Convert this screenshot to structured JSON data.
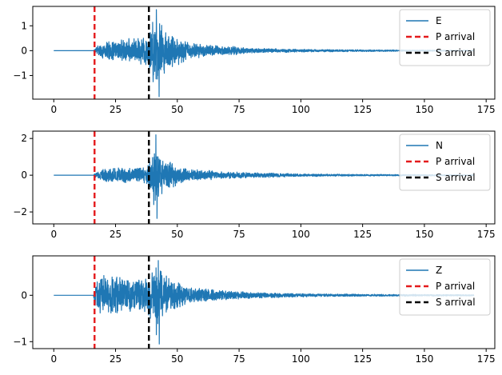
{
  "colors": {
    "trace": "#1f77b4",
    "p_arrival": "#e41a1c",
    "s_arrival": "#000000"
  },
  "chart_data": [
    {
      "type": "line",
      "title": "",
      "xlabel": "",
      "ylabel": "",
      "xlim": [
        -8.5,
        178.5
      ],
      "ylim": [
        -1.95,
        1.78
      ],
      "xticks": [
        0,
        25,
        50,
        75,
        100,
        125,
        150,
        175
      ],
      "yticks": [
        -1,
        0,
        1
      ],
      "legend_position": "top-right",
      "series": [
        {
          "name": "E",
          "style": "solid",
          "duration": 170,
          "envelope": [
            [
              0,
              0
            ],
            [
              16,
              0
            ],
            [
              17,
              0.15
            ],
            [
              19,
              0.3
            ],
            [
              22,
              0.4
            ],
            [
              26,
              0.45
            ],
            [
              30,
              0.5
            ],
            [
              34,
              0.55
            ],
            [
              38,
              0.7
            ],
            [
              40,
              1.3
            ],
            [
              41,
              1.4
            ],
            [
              42,
              1.45
            ],
            [
              43,
              1.3
            ],
            [
              45,
              0.9
            ],
            [
              48,
              0.75
            ],
            [
              55,
              0.35
            ],
            [
              60,
              0.28
            ],
            [
              70,
              0.2
            ],
            [
              80,
              0.12
            ],
            [
              100,
              0.06
            ],
            [
              125,
              0.04
            ],
            [
              150,
              0.03
            ],
            [
              170,
              0.02
            ]
          ],
          "peaks": [
            [
              41.5,
              1.65
            ],
            [
              42.6,
              -1.85
            ],
            [
              40.2,
              -1.25
            ]
          ]
        },
        {
          "name": "P arrival",
          "style": "dashed",
          "x": 16.5
        },
        {
          "name": "S arrival",
          "style": "dashed",
          "x": 38.5
        }
      ]
    },
    {
      "type": "line",
      "title": "",
      "xlabel": "",
      "ylabel": "",
      "xlim": [
        -8.5,
        178.5
      ],
      "ylim": [
        -2.65,
        2.4
      ],
      "xticks": [
        0,
        25,
        50,
        75,
        100,
        125,
        150,
        175
      ],
      "yticks": [
        -2,
        0,
        2
      ],
      "legend_position": "top-right",
      "series": [
        {
          "name": "N",
          "style": "solid",
          "duration": 170,
          "envelope": [
            [
              0,
              0
            ],
            [
              16,
              0
            ],
            [
              17,
              0.2
            ],
            [
              20,
              0.35
            ],
            [
              25,
              0.45
            ],
            [
              30,
              0.45
            ],
            [
              35,
              0.5
            ],
            [
              38,
              0.6
            ],
            [
              40,
              1.4
            ],
            [
              41,
              1.8
            ],
            [
              42,
              1.6
            ],
            [
              44,
              1.0
            ],
            [
              48,
              0.7
            ],
            [
              55,
              0.35
            ],
            [
              65,
              0.25
            ],
            [
              80,
              0.15
            ],
            [
              100,
              0.08
            ],
            [
              125,
              0.05
            ],
            [
              150,
              0.04
            ],
            [
              170,
              0.03
            ]
          ],
          "peaks": [
            [
              41.3,
              2.2
            ],
            [
              41.8,
              -2.35
            ],
            [
              40.5,
              -1.6
            ]
          ]
        },
        {
          "name": "P arrival",
          "style": "dashed",
          "x": 16.5
        },
        {
          "name": "S arrival",
          "style": "dashed",
          "x": 38.5
        }
      ]
    },
    {
      "type": "line",
      "title": "",
      "xlabel": "",
      "ylabel": "",
      "xlim": [
        -8.5,
        178.5
      ],
      "ylim": [
        -1.15,
        0.85
      ],
      "xticks": [
        0,
        25,
        50,
        75,
        100,
        125,
        150,
        175
      ],
      "yticks": [
        -1,
        0
      ],
      "legend_position": "top-right",
      "series": [
        {
          "name": "Z",
          "style": "solid",
          "duration": 170,
          "envelope": [
            [
              0,
              0
            ],
            [
              16,
              0
            ],
            [
              17,
              0.35
            ],
            [
              19,
              0.45
            ],
            [
              25,
              0.45
            ],
            [
              30,
              0.4
            ],
            [
              35,
              0.4
            ],
            [
              38,
              0.5
            ],
            [
              40,
              0.65
            ],
            [
              42,
              0.7
            ],
            [
              44,
              0.55
            ],
            [
              48,
              0.4
            ],
            [
              55,
              0.2
            ],
            [
              65,
              0.12
            ],
            [
              80,
              0.07
            ],
            [
              100,
              0.04
            ],
            [
              125,
              0.025
            ],
            [
              150,
              0.02
            ],
            [
              170,
              0.015
            ]
          ],
          "peaks": [
            [
              42.3,
              0.75
            ],
            [
              42.7,
              -1.05
            ],
            [
              41.5,
              -0.85
            ]
          ]
        },
        {
          "name": "P arrival",
          "style": "dashed",
          "x": 16.5
        },
        {
          "name": "S arrival",
          "style": "dashed",
          "x": 38.5
        }
      ]
    }
  ]
}
